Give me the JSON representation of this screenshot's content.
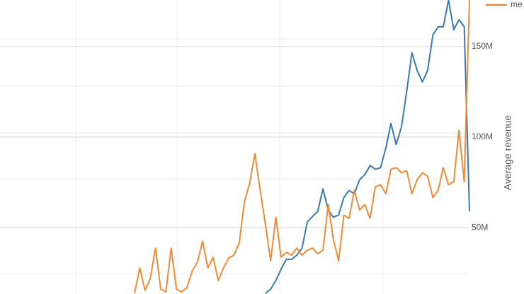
{
  "chart_data": {
    "type": "line",
    "y_label": "Average revenue",
    "categories": [
      null,
      null,
      null,
      null,
      null,
      null,
      null,
      null,
      null,
      null,
      null,
      null,
      null,
      null,
      null,
      null,
      null,
      null,
      null,
      null,
      null,
      null,
      null,
      null,
      null,
      null,
      null,
      null,
      null,
      null,
      null,
      null,
      null,
      null,
      null,
      null,
      null,
      null,
      null,
      null,
      null,
      null,
      null,
      null,
      null,
      null,
      null,
      null,
      null,
      null,
      null,
      null,
      null,
      null,
      null,
      null,
      null,
      null,
      null,
      null,
      null,
      null,
      null,
      null,
      null
    ],
    "series": [
      {
        "color": "#3b78b0",
        "values": [
          null,
          null,
          null,
          null,
          null,
          null,
          null,
          null,
          null,
          null,
          null,
          null,
          null,
          null,
          null,
          null,
          null,
          null,
          null,
          null,
          null,
          null,
          null,
          null,
          null,
          13800000,
          16100000,
          20800000,
          27000000,
          32500000,
          32500000,
          34800000,
          38700000,
          53100000,
          56200000,
          59000000,
          71400000,
          59700000,
          55800000,
          57000000,
          66700000,
          70600000,
          68700000,
          76500000,
          79200000,
          84300000,
          82300000,
          83100000,
          93900000,
          107600000,
          95900000,
          105600000,
          125100000,
          146500000,
          136800000,
          130500000,
          136800000,
          156300000,
          160900000,
          160900000,
          175700000,
          159300000,
          164800000,
          160900000,
          59000000
        ]
      },
      {
        "name": "me",
        "color": "#f08a36",
        "values": [
          13800000,
          27800000,
          15400000,
          22000000,
          38700000,
          16100000,
          14600000,
          38700000,
          16100000,
          14600000,
          16900000,
          25900000,
          30900000,
          42600000,
          27800000,
          33700000,
          20800000,
          27800000,
          33300000,
          34800000,
          41400000,
          64400000,
          74500000,
          90900000,
          70600000,
          51900000,
          31700000,
          55800000,
          33700000,
          36400000,
          34800000,
          38700000,
          34800000,
          37600000,
          38700000,
          35600000,
          37600000,
          62800000,
          43400000,
          31700000,
          57000000,
          55100000,
          70600000,
          59700000,
          62800000,
          55100000,
          72600000,
          73700000,
          68700000,
          82300000,
          83100000,
          80400000,
          81500000,
          68700000,
          76500000,
          80400000,
          78400000,
          66700000,
          70600000,
          83100000,
          73700000,
          75300000,
          103700000,
          75300000,
          175700000
        ]
      }
    ],
    "ylim": [
      13400000,
      175700000
    ],
    "yticks": [
      {
        "value": 50000000,
        "label": "50M"
      },
      {
        "value": 100000000,
        "label": "100M"
      },
      {
        "value": 150000000,
        "label": "150M"
      }
    ],
    "grid": true
  }
}
